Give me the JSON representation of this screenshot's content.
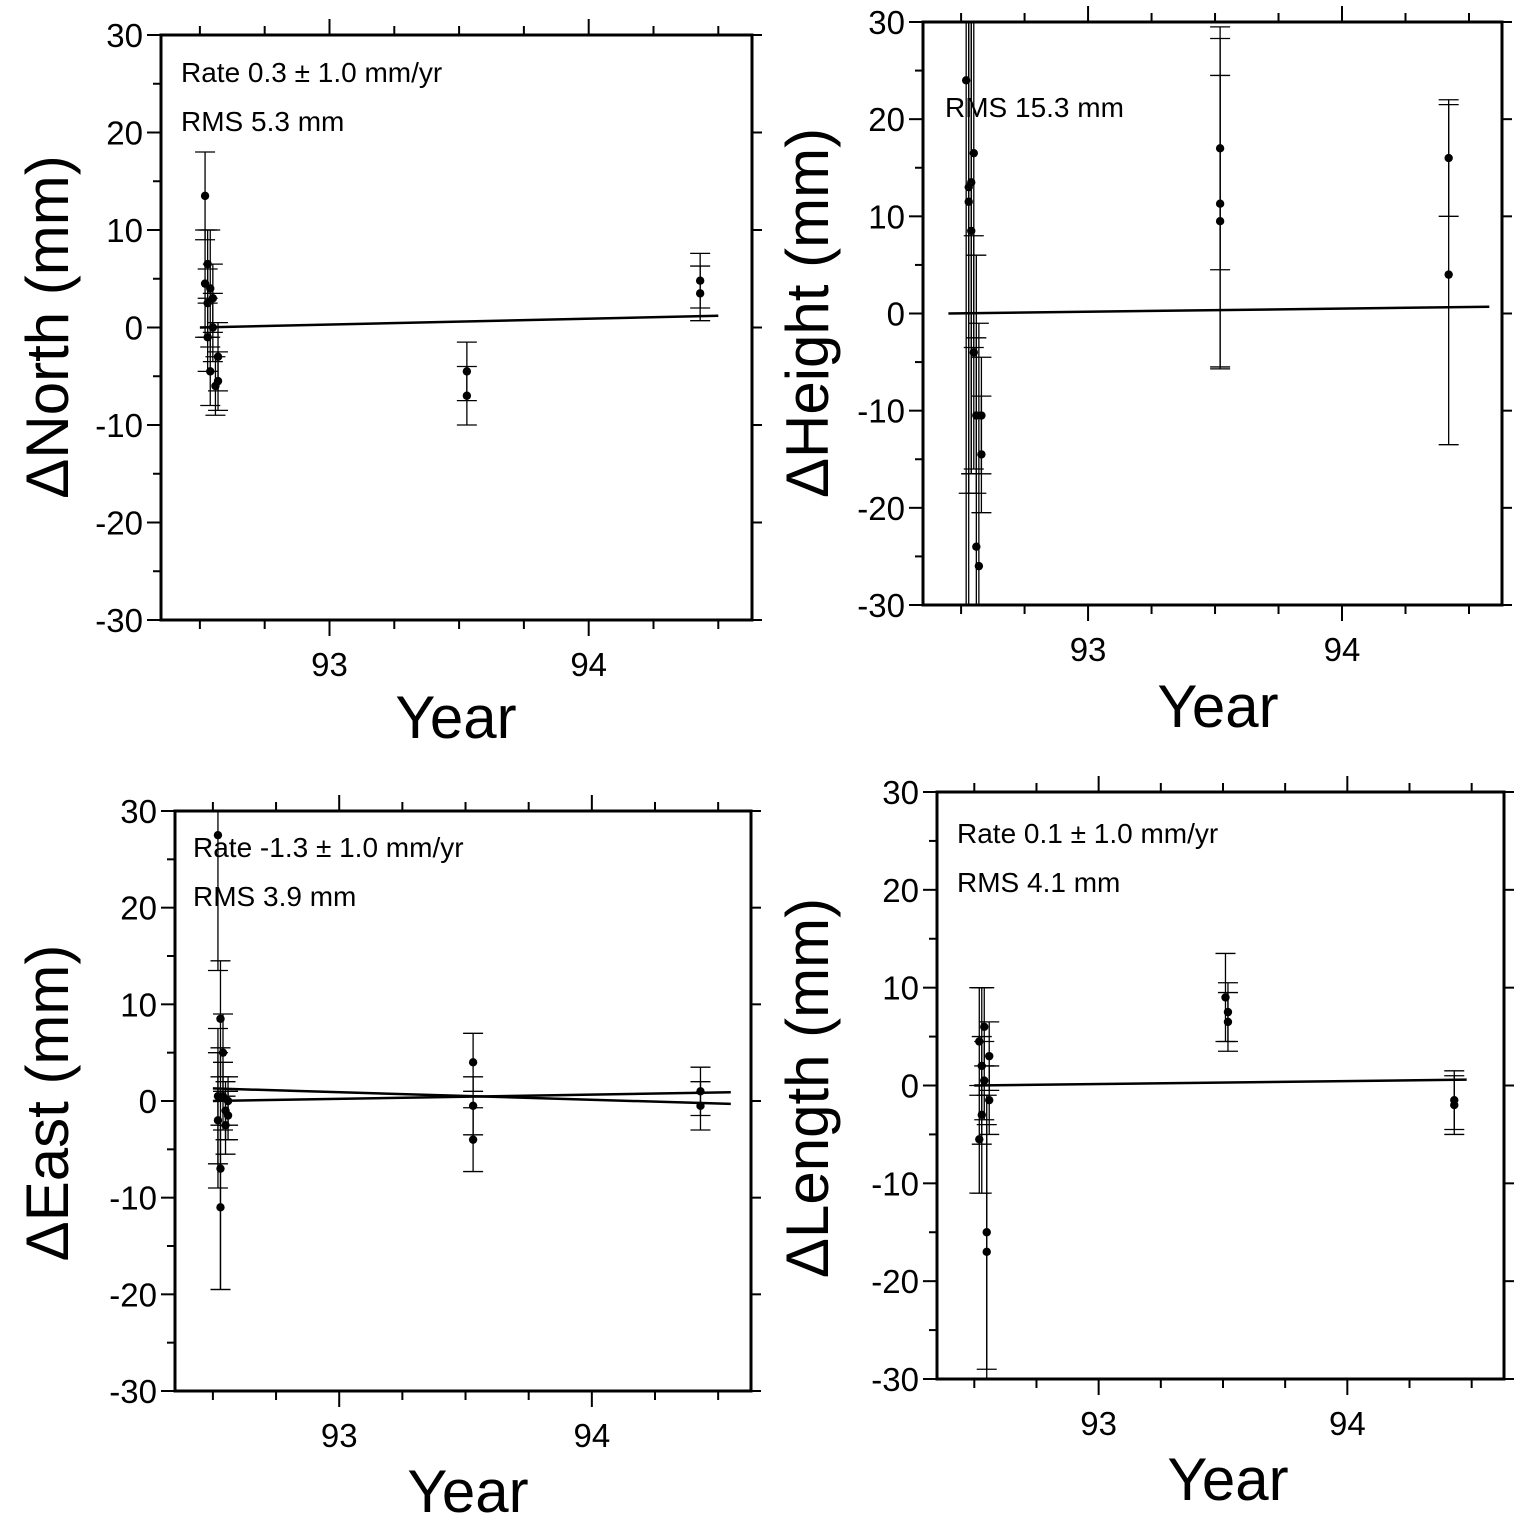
{
  "chart_data": [
    {
      "type": "scatter",
      "ylabel": "ΔNorth (mm)",
      "xlabel": "Year",
      "xticks": [
        "93",
        "94"
      ],
      "yticks": [
        "30",
        "20",
        "10",
        "0",
        "-10",
        "-20",
        "-30"
      ],
      "ylim": [
        -30,
        30
      ],
      "xlim": [
        92.35,
        94.63
      ],
      "annotations": [
        "Rate 0.3 ± 1.0 mm/yr",
        "RMS 5.3 mm"
      ],
      "fit_lines": [
        {
          "x": [
            92.5,
            94.5
          ],
          "y": [
            0.0,
            1.2
          ]
        }
      ],
      "points": [
        {
          "x": 92.52,
          "y": 13.5,
          "err": 4.5
        },
        {
          "x": 92.52,
          "y": 4.5,
          "err": 5.5
        },
        {
          "x": 92.53,
          "y": 6.5,
          "err": 3.5
        },
        {
          "x": 92.53,
          "y": 2.5,
          "err": 3.5
        },
        {
          "x": 92.53,
          "y": -1.0,
          "err": 3.5
        },
        {
          "x": 92.54,
          "y": 4.0,
          "err": 6.0
        },
        {
          "x": 92.54,
          "y": -4.5,
          "err": 3.5
        },
        {
          "x": 92.55,
          "y": 3.0,
          "err": 3.5
        },
        {
          "x": 92.55,
          "y": 0.0,
          "err": 3.5
        },
        {
          "x": 92.56,
          "y": -6.0,
          "err": 3.0
        },
        {
          "x": 92.57,
          "y": -3.0,
          "err": 3.5
        },
        {
          "x": 92.57,
          "y": -5.5,
          "err": 3.0
        },
        {
          "x": 93.53,
          "y": -4.5,
          "err": 3.0
        },
        {
          "x": 93.53,
          "y": -7.0,
          "err": 3.0
        },
        {
          "x": 94.43,
          "y": 4.8,
          "err": 2.8
        },
        {
          "x": 94.43,
          "y": 3.5,
          "err": 2.8
        }
      ]
    },
    {
      "type": "scatter",
      "ylabel": "ΔHeight (mm)",
      "xlabel": "Year",
      "xticks": [
        "93",
        "94"
      ],
      "yticks": [
        "30",
        "20",
        "10",
        "0",
        "-10",
        "-20",
        "-30"
      ],
      "ylim": [
        -30,
        30
      ],
      "xlim": [
        92.35,
        94.63
      ],
      "annotations": [
        "RMS 15.3 mm"
      ],
      "fit_lines": [
        {
          "x": [
            92.45,
            94.58
          ],
          "y": [
            0.0,
            0.7
          ]
        }
      ],
      "points": [
        {
          "x": 92.52,
          "y": 24.0,
          "err": 70
        },
        {
          "x": 92.53,
          "y": 13.0,
          "err": 45
        },
        {
          "x": 92.53,
          "y": 11.5,
          "err": 30
        },
        {
          "x": 92.54,
          "y": 8.5,
          "err": 25
        },
        {
          "x": 92.54,
          "y": 13.5,
          "err": 30
        },
        {
          "x": 92.55,
          "y": 16.5,
          "err": 20
        },
        {
          "x": 92.55,
          "y": -4.0,
          "err": 12
        },
        {
          "x": 92.56,
          "y": -10.5,
          "err": 8
        },
        {
          "x": 92.56,
          "y": -24.0,
          "err": 30
        },
        {
          "x": 92.57,
          "y": -26.0,
          "err": 25
        },
        {
          "x": 92.58,
          "y": -10.5,
          "err": 6
        },
        {
          "x": 92.58,
          "y": -14.5,
          "err": 6
        },
        {
          "x": 93.52,
          "y": 17.0,
          "err": 12.5
        },
        {
          "x": 93.52,
          "y": 11.3,
          "err": 17
        },
        {
          "x": 93.52,
          "y": 9.5,
          "err": 15
        },
        {
          "x": 94.42,
          "y": 16.0,
          "err": 6
        },
        {
          "x": 94.42,
          "y": 4.0,
          "err": 17.5
        }
      ]
    },
    {
      "type": "scatter",
      "ylabel": "ΔEast (mm)",
      "xlabel": "Year",
      "xticks": [
        "93",
        "94"
      ],
      "yticks": [
        "30",
        "20",
        "10",
        "0",
        "-10",
        "-20",
        "-30"
      ],
      "ylim": [
        -30,
        30
      ],
      "xlim": [
        92.35,
        94.63
      ],
      "annotations": [
        "Rate -1.3 ± 1.0 mm/yr",
        "RMS 3.9 mm"
      ],
      "fit_lines": [
        {
          "x": [
            92.5,
            94.55
          ],
          "y": [
            1.3,
            -0.3
          ]
        },
        {
          "x": [
            92.5,
            94.55
          ],
          "y": [
            0.0,
            0.9
          ]
        }
      ],
      "points": [
        {
          "x": 92.52,
          "y": 27.5,
          "err": 14
        },
        {
          "x": 92.52,
          "y": 0.5,
          "err": 7
        },
        {
          "x": 92.52,
          "y": -2.0,
          "err": 7
        },
        {
          "x": 92.53,
          "y": -7.0,
          "err": 12.5
        },
        {
          "x": 92.53,
          "y": -11.0,
          "err": 8.5
        },
        {
          "x": 92.53,
          "y": 8.5,
          "err": 6
        },
        {
          "x": 92.54,
          "y": 5.0,
          "err": 4
        },
        {
          "x": 92.54,
          "y": 0.5,
          "err": 3.5
        },
        {
          "x": 92.55,
          "y": -1.0,
          "err": 3
        },
        {
          "x": 92.55,
          "y": -2.5,
          "err": 3
        },
        {
          "x": 92.56,
          "y": 0.0,
          "err": 2.5
        },
        {
          "x": 92.56,
          "y": -1.5,
          "err": 2.5
        },
        {
          "x": 93.53,
          "y": 4.0,
          "err": 3
        },
        {
          "x": 93.53,
          "y": -0.5,
          "err": 3
        },
        {
          "x": 93.53,
          "y": -4.0,
          "err": 3.3
        },
        {
          "x": 94.43,
          "y": 1.0,
          "err": 2.5
        },
        {
          "x": 94.43,
          "y": -0.5,
          "err": 2.5
        }
      ]
    },
    {
      "type": "scatter",
      "ylabel": "ΔLength (mm)",
      "xlabel": "Year",
      "xticks": [
        "93",
        "94"
      ],
      "yticks": [
        "30",
        "20",
        "10",
        "0",
        "-10",
        "-20",
        "-30"
      ],
      "ylim": [
        -30,
        30
      ],
      "xlim": [
        92.35,
        94.63
      ],
      "annotations": [
        "Rate 0.1 ± 1.0 mm/yr",
        "RMS 4.1 mm"
      ],
      "fit_lines": [
        {
          "x": [
            92.5,
            94.48
          ],
          "y": [
            0.0,
            0.6
          ]
        }
      ],
      "points": [
        {
          "x": 92.52,
          "y": 4.5,
          "err": 5.5
        },
        {
          "x": 92.52,
          "y": -5.5,
          "err": 5.5
        },
        {
          "x": 92.53,
          "y": 2.0,
          "err": 8
        },
        {
          "x": 92.53,
          "y": -3.0,
          "err": 8
        },
        {
          "x": 92.54,
          "y": 6.0,
          "err": 4
        },
        {
          "x": 92.54,
          "y": 0.5,
          "err": 4
        },
        {
          "x": 92.55,
          "y": -15.0,
          "err": 14
        },
        {
          "x": 92.55,
          "y": -17.0,
          "err": 13
        },
        {
          "x": 92.56,
          "y": 3.0,
          "err": 3.5
        },
        {
          "x": 92.56,
          "y": -1.5,
          "err": 3.5
        },
        {
          "x": 93.51,
          "y": 9.0,
          "err": 4.5
        },
        {
          "x": 93.52,
          "y": 7.5,
          "err": 3
        },
        {
          "x": 93.52,
          "y": 6.5,
          "err": 3
        },
        {
          "x": 94.43,
          "y": -1.5,
          "err": 3
        },
        {
          "x": 94.43,
          "y": -2.0,
          "err": 3
        }
      ]
    }
  ]
}
